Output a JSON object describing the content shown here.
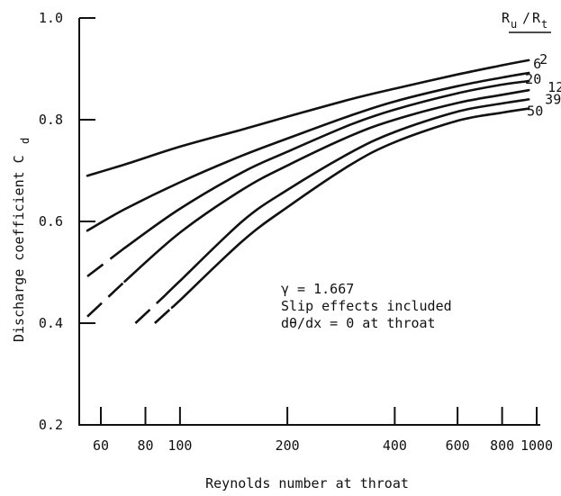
{
  "chart_data": {
    "type": "line",
    "xlabel": "Reynolds number at throat",
    "ylabel": "Discharge coefficient C",
    "ylabel_sub": "d",
    "x_scale": "log",
    "xlim": [
      55,
      1100
    ],
    "ylim": [
      0.2,
      1.0
    ],
    "x_ticks": [
      60,
      80,
      100,
      200,
      400,
      600,
      800,
      1000
    ],
    "x_tick_labels": [
      "60",
      "80",
      "100",
      "200",
      "400",
      "600",
      "800",
      "1000"
    ],
    "y_ticks": [
      0.2,
      0.4,
      0.6,
      0.8,
      1.0
    ],
    "y_tick_labels": [
      "0.2",
      "0.4",
      "0.6",
      "0.8",
      "1.0"
    ],
    "legend_title": {
      "R": "R",
      "u": "u",
      "slash": "/",
      "t": "t"
    },
    "grid": false,
    "series": [
      {
        "name": "2",
        "dash_until": null,
        "x": [
          55,
          70,
          100,
          150,
          200,
          300,
          400,
          600,
          800,
          950
        ],
        "y": [
          0.69,
          0.712,
          0.747,
          0.781,
          0.806,
          0.84,
          0.861,
          0.889,
          0.907,
          0.917
        ]
      },
      {
        "name": "6",
        "dash_until": null,
        "x": [
          55,
          70,
          100,
          150,
          200,
          300,
          400,
          600,
          800,
          950
        ],
        "y": [
          0.582,
          0.624,
          0.677,
          0.73,
          0.763,
          0.808,
          0.836,
          0.866,
          0.883,
          0.892
        ]
      },
      {
        "name": "12",
        "dash_until": 70,
        "x": [
          55,
          70,
          100,
          150,
          200,
          300,
          400,
          600,
          800,
          950
        ],
        "y": [
          0.492,
          0.548,
          0.625,
          0.697,
          0.737,
          0.79,
          0.82,
          0.852,
          0.869,
          0.876
        ]
      },
      {
        "name": "20",
        "dash_until": 70,
        "x": [
          55,
          70,
          100,
          150,
          200,
          300,
          400,
          600,
          800,
          950
        ],
        "y": [
          0.413,
          0.482,
          0.578,
          0.663,
          0.71,
          0.768,
          0.8,
          0.833,
          0.849,
          0.858
        ]
      },
      {
        "name": "39",
        "dash_until": 90,
        "x": [
          75,
          90,
          100,
          150,
          200,
          300,
          400,
          600,
          800,
          950
        ],
        "y": [
          0.4,
          0.452,
          0.483,
          0.601,
          0.662,
          0.735,
          0.776,
          0.816,
          0.832,
          0.84
        ]
      },
      {
        "name": "50",
        "dash_until": 95,
        "x": [
          85,
          95,
          100,
          150,
          200,
          300,
          400,
          600,
          800,
          950
        ],
        "y": [
          0.4,
          0.431,
          0.445,
          0.562,
          0.628,
          0.711,
          0.756,
          0.798,
          0.814,
          0.822
        ]
      }
    ],
    "annotations": [
      "γ = 1.667",
      "Slip effects included",
      "dθ/dx = 0 at throat"
    ]
  }
}
